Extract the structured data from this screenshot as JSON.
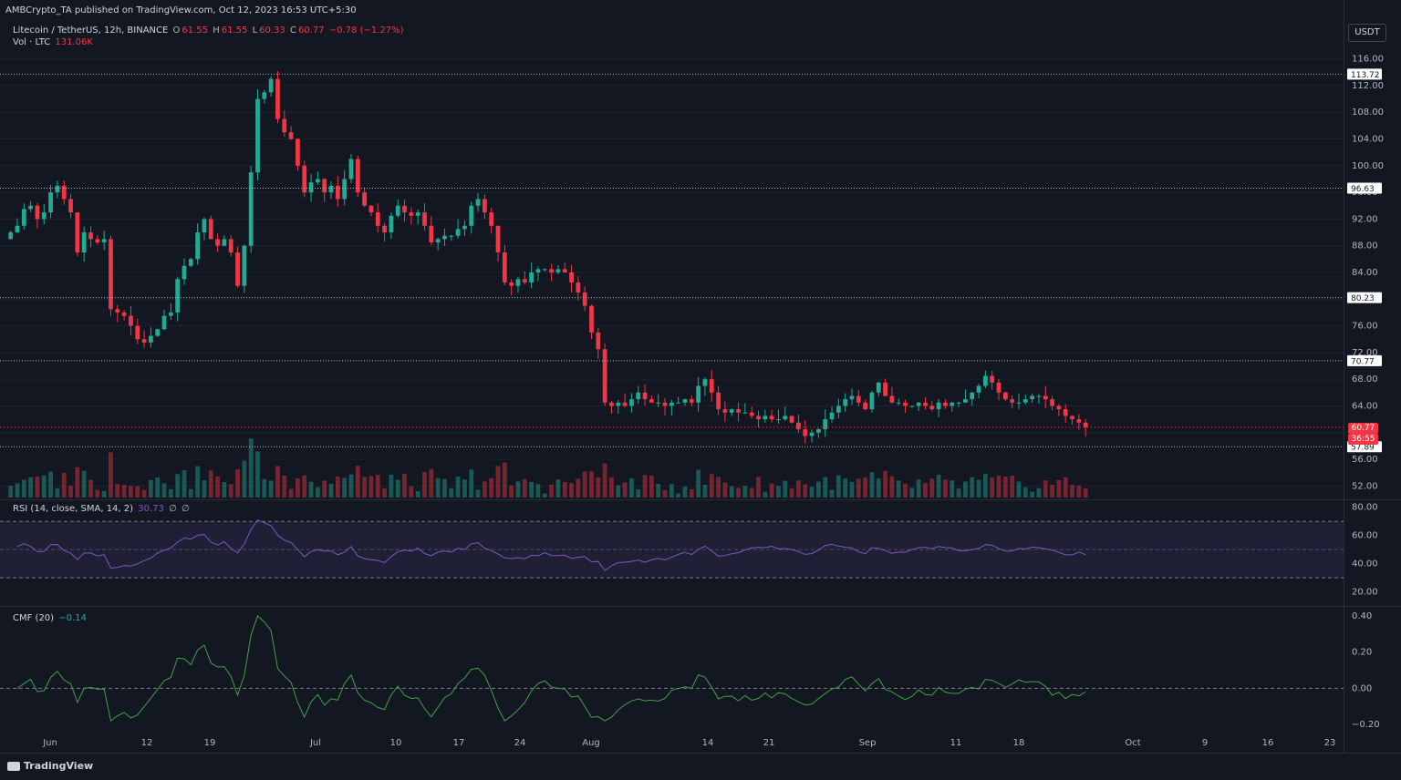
{
  "header": {
    "publisher": "AMBCrypto_TA published on TradingView.com, Oct 12, 2023 16:53 UTC+5:30"
  },
  "legend": {
    "symbol": "Litecoin / TetherUS, 12h, BINANCE",
    "o_label": "O",
    "o_value": "61.55",
    "h_label": "H",
    "h_value": "61.55",
    "l_label": "L",
    "l_value": "60.33",
    "c_label": "C",
    "c_value": "60.77",
    "change": "−0.78 (−1.27%)",
    "vol_label": "Vol · LTC",
    "vol_value": "131.06K"
  },
  "currency_button": "USDT",
  "indicators": {
    "rsi": {
      "label": "RSI (14, close, SMA, 14, 2)",
      "value": "30.73",
      "ph1": "∅",
      "ph2": "∅"
    },
    "cmf": {
      "label": "CMF (20)",
      "value": "−0.14"
    }
  },
  "price_badges": {
    "last_price": "60.77",
    "countdown": "36:55"
  },
  "footer": {
    "logo": "TradingView"
  },
  "colors": {
    "up": "#22ab94",
    "down": "#f23645",
    "background": "#131722",
    "grid": "#1e222d",
    "rsi_line": "#7e57c2",
    "cmf_line": "#43a047"
  },
  "chart_data": [
    {
      "type": "candlestick",
      "title": "Litecoin / TetherUS, 12h, BINANCE",
      "y_ticks": [
        "116.00",
        "112.00",
        "108.00",
        "104.00",
        "100.00",
        "96.00",
        "92.00",
        "88.00",
        "84.00",
        "80.00",
        "76.00",
        "72.00",
        "68.00",
        "64.00",
        "60.00",
        "56.00",
        "52.00"
      ],
      "ylim": [
        50,
        118
      ],
      "x_ticks": [
        "Jun",
        "12",
        "19",
        "Jul",
        "10",
        "17",
        "24",
        "Aug",
        "14",
        "21",
        "Sep",
        "11",
        "18",
        "Oct",
        "9",
        "16",
        "23"
      ],
      "horizontal_levels": [
        113.72,
        96.63,
        80.23,
        70.77,
        57.89
      ],
      "level_labels": [
        "113.72",
        "96.63",
        "80.23",
        "70.77",
        "57.89"
      ],
      "closes": [
        90.0,
        91.0,
        93.5,
        94.0,
        92.0,
        93.0,
        96.0,
        97.0,
        95.0,
        93.0,
        87.0,
        90.0,
        89.0,
        88.5,
        89.0,
        78.5,
        78.0,
        77.5,
        76.0,
        74.0,
        73.5,
        74.5,
        75.5,
        77.5,
        78.0,
        83.0,
        85.0,
        86.0,
        90.0,
        92.0,
        89.0,
        88.0,
        89.0,
        87.0,
        82.0,
        88.0,
        99.0,
        110.0,
        111.0,
        113.0,
        107.0,
        105.0,
        104.0,
        100.0,
        96.0,
        97.5,
        98.0,
        96.0,
        97.0,
        95.0,
        98.0,
        101.0,
        96.0,
        94.0,
        93.0,
        91.0,
        90.0,
        92.5,
        94.0,
        93.0,
        92.5,
        93.0,
        91.0,
        88.5,
        89.0,
        89.5,
        89.5,
        90.5,
        91.0,
        94.0,
        95.0,
        93.0,
        91.0,
        87.0,
        82.5,
        82.0,
        83.0,
        82.5,
        84.0,
        84.5,
        84.5,
        84.0,
        84.5,
        84.0,
        82.5,
        81.0,
        79.0,
        75.0,
        72.5,
        64.5,
        64.0,
        64.5,
        64.0,
        65.0,
        66.0,
        65.0,
        64.5,
        64.5,
        64.0,
        64.5,
        64.5,
        65.0,
        64.5,
        67.0,
        68.0,
        66.0,
        63.5,
        63.0,
        63.5,
        63.0,
        63.0,
        62.5,
        62.0,
        62.5,
        62.0,
        62.0,
        62.5,
        61.5,
        60.5,
        59.5,
        60.0,
        60.5,
        62.0,
        63.0,
        64.0,
        65.0,
        65.5,
        64.5,
        63.5,
        66.0,
        67.5,
        65.5,
        64.5,
        64.5,
        64.0,
        64.0,
        64.5,
        64.0,
        63.5,
        64.5,
        64.0,
        64.5,
        64.5,
        65.0,
        66.0,
        67.0,
        68.5,
        67.5,
        66.0,
        65.0,
        64.5,
        64.5,
        65.0,
        65.5,
        65.5,
        65.0,
        64.0,
        63.5,
        62.5,
        62.0,
        61.5,
        60.8
      ],
      "rsi": {
        "ylim": [
          10,
          85
        ],
        "y_ticks": [
          "80.00",
          "60.00",
          "40.00",
          "20.00"
        ],
        "bands": [
          70,
          30
        ],
        "mid": 50
      },
      "cmf": {
        "ylim": [
          -0.25,
          0.45
        ],
        "y_ticks": [
          "0.40",
          "0.20",
          "0.00",
          "−0.20"
        ],
        "zero": 0
      }
    }
  ]
}
